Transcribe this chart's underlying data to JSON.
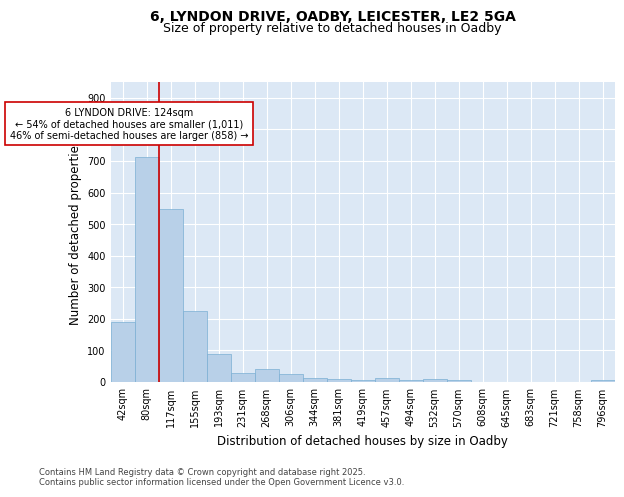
{
  "title_line1": "6, LYNDON DRIVE, OADBY, LEICESTER, LE2 5GA",
  "title_line2": "Size of property relative to detached houses in Oadby",
  "xlabel": "Distribution of detached houses by size in Oadby",
  "ylabel": "Number of detached properties",
  "bar_color": "#b8d0e8",
  "bar_edge_color": "#7aafd4",
  "background_color": "#dce8f5",
  "grid_color": "#ffffff",
  "vline_color": "#cc0000",
  "vline_x_index": 2,
  "annotation_text": "6 LYNDON DRIVE: 124sqm\n← 54% of detached houses are smaller (1,011)\n46% of semi-detached houses are larger (858) →",
  "annotation_box_edgecolor": "#cc0000",
  "bins": [
    "42sqm",
    "80sqm",
    "117sqm",
    "155sqm",
    "193sqm",
    "231sqm",
    "268sqm",
    "306sqm",
    "344sqm",
    "381sqm",
    "419sqm",
    "457sqm",
    "494sqm",
    "532sqm",
    "570sqm",
    "608sqm",
    "645sqm",
    "683sqm",
    "721sqm",
    "758sqm",
    "796sqm"
  ],
  "values": [
    190,
    713,
    548,
    225,
    90,
    30,
    40,
    25,
    13,
    10,
    5,
    12,
    5,
    8,
    5,
    0,
    0,
    0,
    0,
    0,
    5
  ],
  "ylim": [
    0,
    950
  ],
  "yticks": [
    0,
    100,
    200,
    300,
    400,
    500,
    600,
    700,
    800,
    900
  ],
  "footer_text": "Contains HM Land Registry data © Crown copyright and database right 2025.\nContains public sector information licensed under the Open Government Licence v3.0.",
  "title_fontsize": 10,
  "subtitle_fontsize": 9,
  "tick_fontsize": 7,
  "label_fontsize": 8.5,
  "footer_fontsize": 6,
  "fig_bg": "#ffffff"
}
